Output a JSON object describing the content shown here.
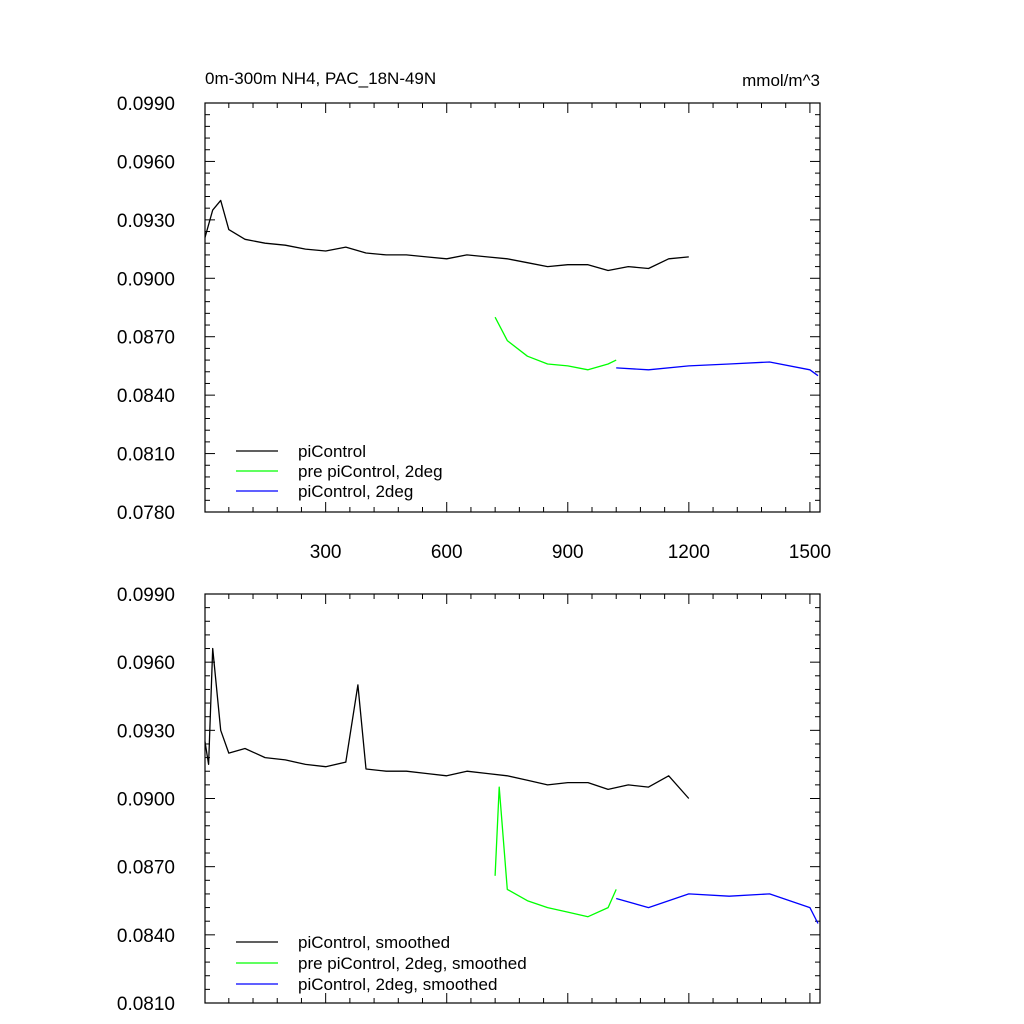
{
  "figure": {
    "title_left": "0m-300m NH4, PAC_18N-49N",
    "title_right": "mmol/m^3"
  },
  "chart_data": [
    {
      "type": "line",
      "title": "0m-300m NH4, PAC_18N-49N",
      "units": "mmol/m^3",
      "xlim": [
        1,
        1525
      ],
      "ylim": [
        0.078,
        0.099
      ],
      "x_ticks": [
        300,
        600,
        900,
        1200,
        1500
      ],
      "x_tick_labels": [
        "300",
        "600",
        "900",
        "1200",
        "1500"
      ],
      "y_ticks": [
        0.078,
        0.081,
        0.084,
        0.087,
        0.09,
        0.093,
        0.096,
        0.099
      ],
      "y_tick_labels": [
        "0.0780",
        "0.0810",
        "0.0840",
        "0.0870",
        "0.0900",
        "0.0930",
        "0.0960",
        "0.0990"
      ],
      "legend_position": "bottom-left",
      "grid": false,
      "series": [
        {
          "name": "piControl",
          "color": "#000000",
          "x": [
            1,
            20,
            40,
            60,
            100,
            150,
            200,
            250,
            300,
            350,
            400,
            450,
            500,
            550,
            600,
            650,
            700,
            750,
            800,
            850,
            900,
            950,
            1000,
            1050,
            1100,
            1150,
            1200
          ],
          "y": [
            0.0921,
            0.0935,
            0.094,
            0.0925,
            0.092,
            0.0918,
            0.0917,
            0.0915,
            0.0914,
            0.0916,
            0.0913,
            0.0912,
            0.0912,
            0.0911,
            0.091,
            0.0912,
            0.0911,
            0.091,
            0.0908,
            0.0906,
            0.0907,
            0.0907,
            0.0904,
            0.0906,
            0.0905,
            0.091,
            0.0911
          ]
        },
        {
          "name": "pre piControl, 2deg",
          "color": "#00ff00",
          "x": [
            720,
            750,
            800,
            850,
            900,
            950,
            1000,
            1020
          ],
          "y": [
            0.088,
            0.0868,
            0.086,
            0.0856,
            0.0855,
            0.0853,
            0.0856,
            0.0858
          ]
        },
        {
          "name": "piControl, 2deg",
          "color": "#0000ff",
          "x": [
            1020,
            1100,
            1200,
            1300,
            1400,
            1500,
            1520
          ],
          "y": [
            0.0854,
            0.0853,
            0.0855,
            0.0856,
            0.0857,
            0.0853,
            0.085
          ]
        }
      ]
    },
    {
      "type": "line",
      "xlim": [
        1,
        1525
      ],
      "ylim": [
        0.081,
        0.099
      ],
      "x_ticks": [
        300,
        600,
        900,
        1200,
        1500
      ],
      "y_ticks": [
        0.081,
        0.084,
        0.087,
        0.09,
        0.093,
        0.096,
        0.099
      ],
      "y_tick_labels": [
        "0.0810",
        "0.0840",
        "0.0870",
        "0.0900",
        "0.0930",
        "0.0960",
        "0.0990"
      ],
      "legend_position": "bottom-left",
      "grid": false,
      "series": [
        {
          "name": "piControl, smoothed",
          "color": "#000000",
          "x": [
            1,
            10,
            20,
            40,
            60,
            100,
            150,
            200,
            250,
            300,
            350,
            380,
            400,
            450,
            500,
            550,
            600,
            650,
            700,
            750,
            800,
            850,
            900,
            950,
            1000,
            1050,
            1100,
            1150,
            1200
          ],
          "y": [
            0.0925,
            0.0915,
            0.0966,
            0.093,
            0.092,
            0.0922,
            0.0918,
            0.0917,
            0.0915,
            0.0914,
            0.0916,
            0.095,
            0.0913,
            0.0912,
            0.0912,
            0.0911,
            0.091,
            0.0912,
            0.0911,
            0.091,
            0.0908,
            0.0906,
            0.0907,
            0.0907,
            0.0904,
            0.0906,
            0.0905,
            0.091,
            0.09
          ]
        },
        {
          "name": "pre piControl, 2deg, smoothed",
          "color": "#00ff00",
          "x": [
            720,
            730,
            750,
            800,
            850,
            900,
            950,
            1000,
            1020
          ],
          "y": [
            0.0866,
            0.0905,
            0.086,
            0.0855,
            0.0852,
            0.085,
            0.0848,
            0.0852,
            0.086
          ]
        },
        {
          "name": "piControl, 2deg, smoothed",
          "color": "#0000ff",
          "x": [
            1020,
            1100,
            1200,
            1300,
            1400,
            1500,
            1520
          ],
          "y": [
            0.0856,
            0.0852,
            0.0858,
            0.0857,
            0.0858,
            0.0852,
            0.0845
          ]
        }
      ]
    }
  ]
}
